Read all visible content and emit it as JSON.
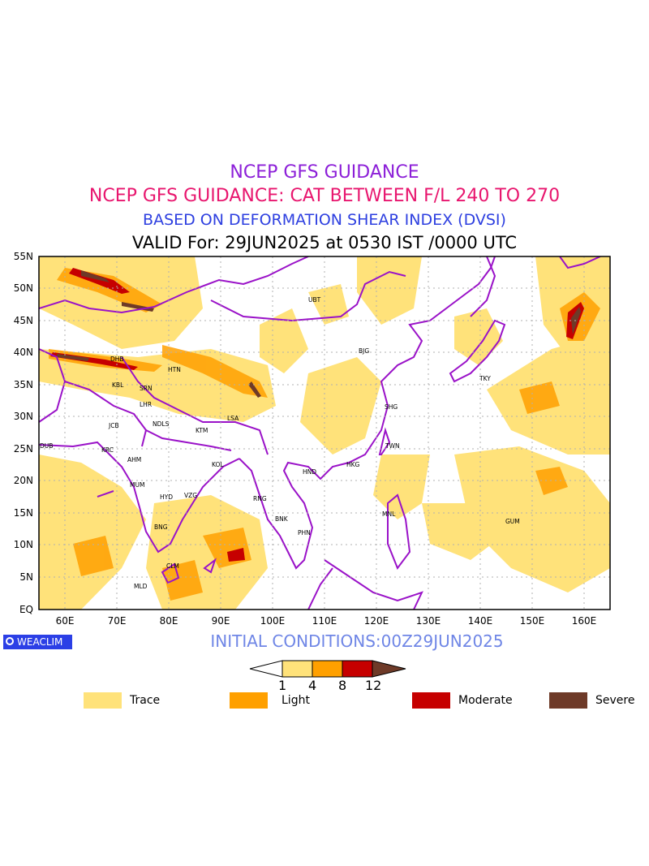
{
  "titles": {
    "line1": "NCEP GFS GUIDANCE",
    "line2": "NCEP GFS GUIDANCE: CAT BETWEEN F/L 240 TO 270",
    "line3": "BASED ON DEFORMATION SHEAR INDEX (DVSI)",
    "line4": "VALID For: 29JUN2025 at 0530 IST /0000 UTC"
  },
  "logo": "WEACLIM",
  "initial_conditions": "INITIAL CONDITIONS:00Z29JUN2025",
  "map": {
    "lat_labels": [
      "55N",
      "50N",
      "45N",
      "40N",
      "35N",
      "30N",
      "25N",
      "20N",
      "15N",
      "10N",
      "5N",
      "EQ"
    ],
    "lon_labels": [
      "60E",
      "70E",
      "80E",
      "90E",
      "100E",
      "110E",
      "120E",
      "130E",
      "140E",
      "150E",
      "160E"
    ],
    "stations": [
      {
        "code": "UBT"
      },
      {
        "code": "BJG"
      },
      {
        "code": "TKY"
      },
      {
        "code": "SHG"
      },
      {
        "code": "TWN"
      },
      {
        "code": "HKG"
      },
      {
        "code": "HND"
      },
      {
        "code": "MNL"
      },
      {
        "code": "GUM"
      },
      {
        "code": "BNK"
      },
      {
        "code": "PHN"
      },
      {
        "code": "RNG"
      },
      {
        "code": "LSA"
      },
      {
        "code": "KTM"
      },
      {
        "code": "KOL"
      },
      {
        "code": "HTN"
      },
      {
        "code": "DHB"
      },
      {
        "code": "KBL"
      },
      {
        "code": "SRN"
      },
      {
        "code": "LHR"
      },
      {
        "code": "NDLS"
      },
      {
        "code": "JCB"
      },
      {
        "code": "KRC"
      },
      {
        "code": "AHM"
      },
      {
        "code": "DUB"
      },
      {
        "code": "MUM"
      },
      {
        "code": "HYD"
      },
      {
        "code": "VZG"
      },
      {
        "code": "BNG"
      },
      {
        "code": "CLM"
      },
      {
        "code": "MLD"
      }
    ]
  },
  "colorbar": {
    "ticks": [
      "1",
      "4",
      "8",
      "12"
    ],
    "colors": [
      "#ffe27a",
      "#ffa000",
      "#c60000",
      "#6e3a28"
    ]
  },
  "legend": [
    {
      "label": "Trace",
      "color": "#ffe27a"
    },
    {
      "label": "Light",
      "color": "#ffa000"
    },
    {
      "label": "Moderate",
      "color": "#c60000"
    },
    {
      "label": "Severe",
      "color": "#6e3a28"
    }
  ]
}
